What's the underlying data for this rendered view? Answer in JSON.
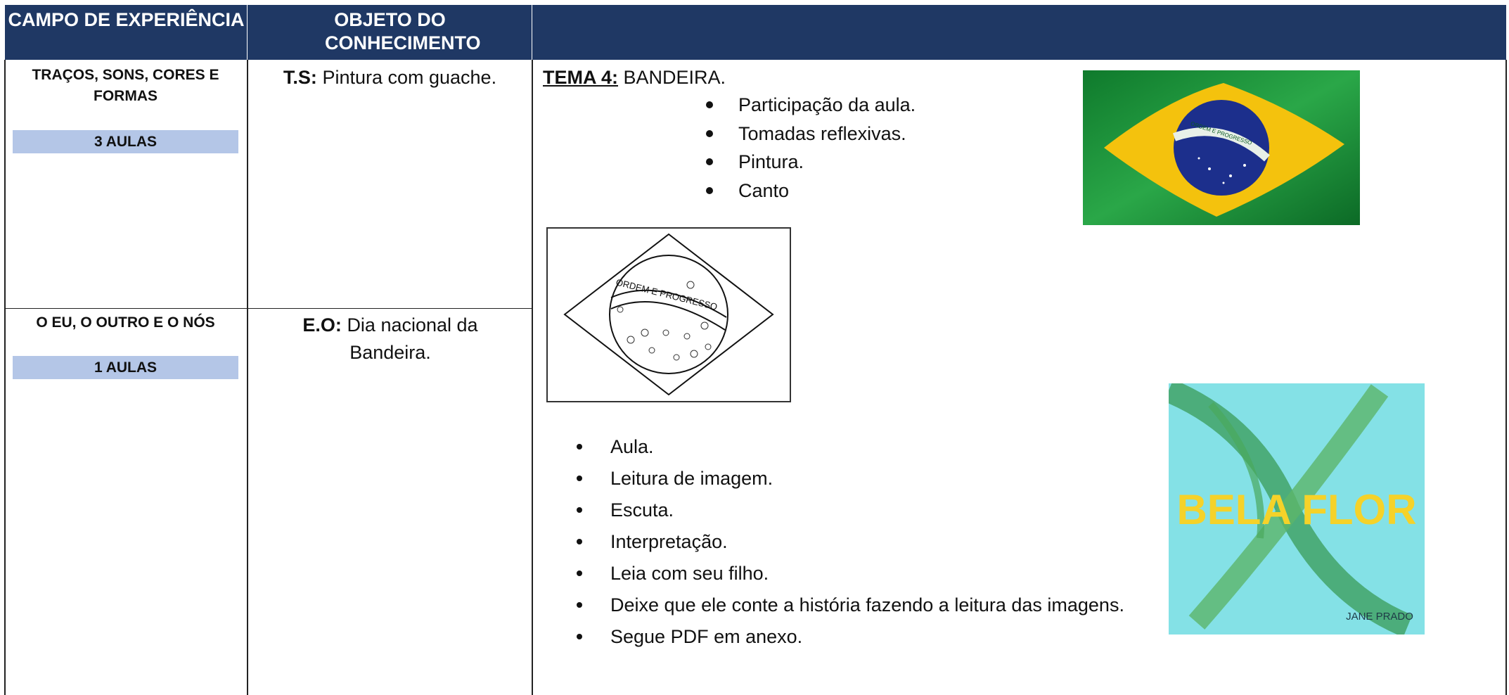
{
  "header": {
    "columns": [
      "CAMPO DE EXPERIÊNCIA",
      "OBJETO DO CONHECIMENTO"
    ]
  },
  "rows": [
    {
      "campo": "TRAÇOS, SONS, CORES E FORMAS",
      "aulas": "3 AULAS",
      "objeto_label": "T.S:",
      "objeto": "Pintura com guache."
    },
    {
      "campo": "O EU, O OUTRO E O NÓS",
      "aulas": "1 AULAS",
      "objeto_label": "E.O:",
      "objeto": "Dia nacional da Bandeira."
    }
  ],
  "content": {
    "tema_label": "TEMA 4:",
    "tema": "BANDEIRA.",
    "list1": [
      "Participação da aula.",
      "Tomadas reflexivas.",
      "Pintura.",
      "Canto"
    ],
    "list2": [
      "Aula.",
      "Leitura de imagem.",
      "Escuta.",
      "Interpretação.",
      "Leia com seu filho.",
      "Deixe que ele conte a história fazendo a leitura das imagens.",
      "Segue PDF em anexo."
    ],
    "flag_motto": "ORDEM E PROGRESSO",
    "book": {
      "title": "BELA FLOR",
      "author": "JANE PRADO"
    }
  }
}
